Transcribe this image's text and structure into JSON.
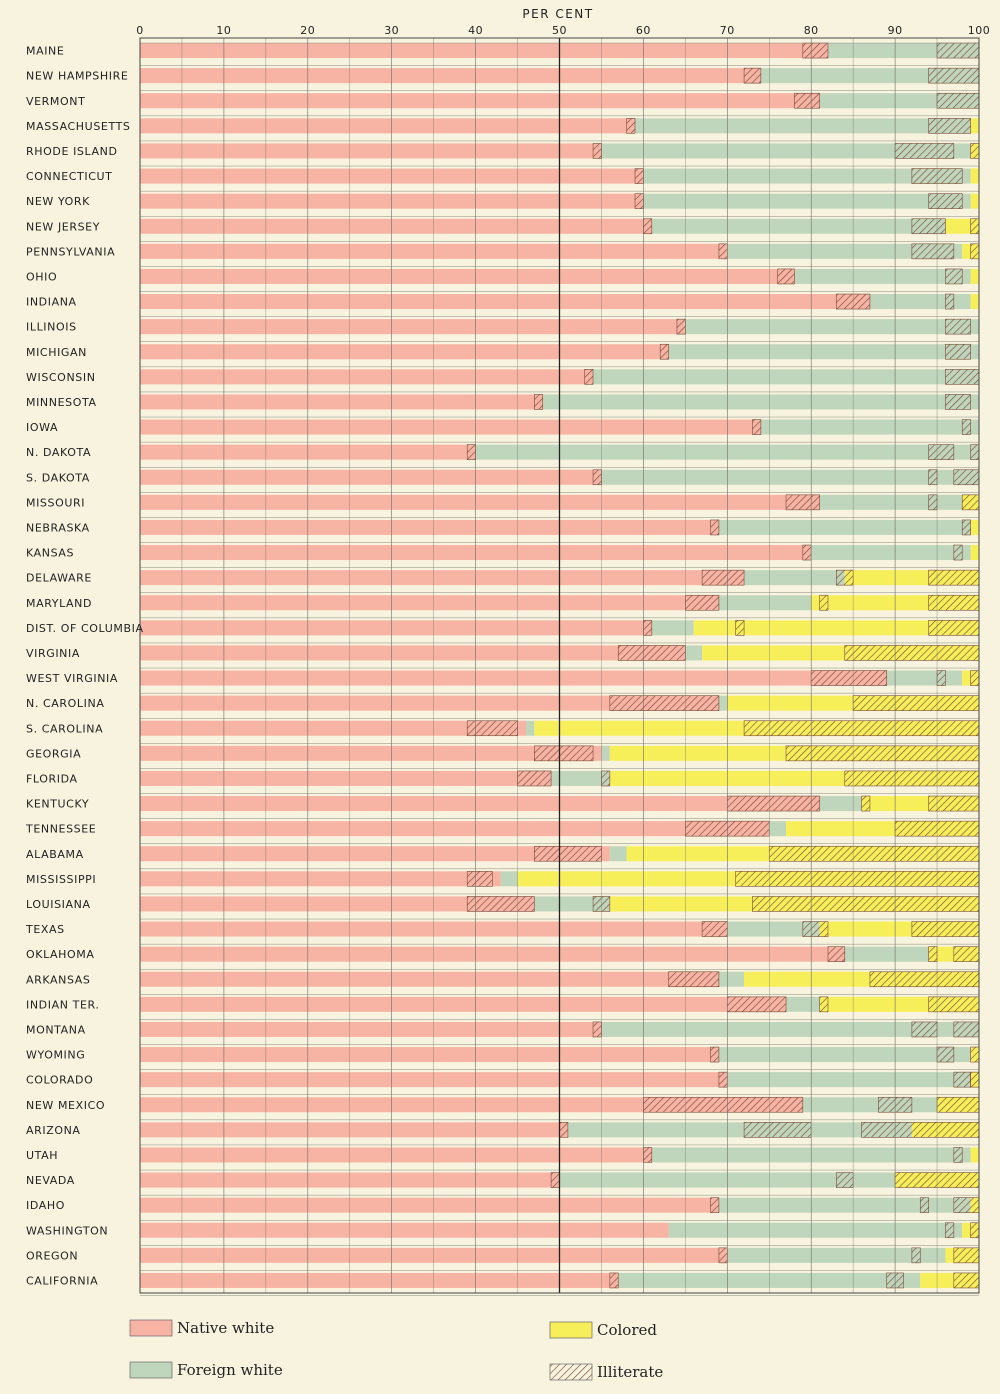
{
  "chart_data": {
    "type": "bar",
    "orientation": "horizontal",
    "stacked": true,
    "axis_title": "PER CENT",
    "ticks": [
      0,
      10,
      20,
      30,
      40,
      50,
      60,
      70,
      80,
      90,
      100
    ],
    "xlim": [
      0,
      100
    ],
    "grid": true,
    "legend_position": "bottom",
    "colors": {
      "native_white": "#f7b3a3",
      "foreign_white": "#bfd6bd",
      "colored": "#f7ef5a",
      "illiterate": "#c6c3b1",
      "hatch": "#7a4a3a",
      "background": "#f7f3de"
    },
    "legend": [
      {
        "key": "native_white",
        "label": "Native white"
      },
      {
        "key": "colored",
        "label": "Colored"
      },
      {
        "key": "foreign_white",
        "label": "Foreign white"
      },
      {
        "key": "illiterate",
        "label": "Illiterate"
      }
    ],
    "segment_order": [
      "native_white",
      "foreign_white",
      "colored"
    ],
    "categories": [
      "MAINE",
      "NEW HAMPSHIRE",
      "VERMONT",
      "MASSACHUSETTS",
      "RHODE ISLAND",
      "CONNECTICUT",
      "NEW YORK",
      "NEW JERSEY",
      "PENNSYLVANIA",
      "OHIO",
      "INDIANA",
      "ILLINOIS",
      "MICHIGAN",
      "WISCONSIN",
      "MINNESOTA",
      "IOWA",
      "N. DAKOTA",
      "S. DAKOTA",
      "MISSOURI",
      "NEBRASKA",
      "KANSAS",
      "DELAWARE",
      "MARYLAND",
      "DIST. OF COLUMBIA",
      "VIRGINIA",
      "WEST VIRGINIA",
      "N. CAROLINA",
      "S. CAROLINA",
      "GEORGIA",
      "FLORIDA",
      "KENTUCKY",
      "TENNESSEE",
      "ALABAMA",
      "MISSISSIPPI",
      "LOUISIANA",
      "TEXAS",
      "OKLAHOMA",
      "ARKANSAS",
      "INDIAN TER.",
      "MONTANA",
      "WYOMING",
      "COLORADO",
      "NEW MEXICO",
      "ARIZONA",
      "UTAH",
      "NEVADA",
      "IDAHO",
      "WASHINGTON",
      "OREGON",
      "CALIFORNIA"
    ],
    "series": [
      {
        "name": "Native white",
        "key": "native_white",
        "values": [
          82,
          74,
          81,
          59,
          55,
          60,
          60,
          61,
          70,
          78,
          87,
          65,
          63,
          54,
          48,
          74,
          40,
          55,
          81,
          69,
          80,
          72,
          69,
          61,
          65,
          89,
          69,
          46,
          55,
          49,
          81,
          75,
          56,
          43,
          47,
          70,
          84,
          69,
          77,
          55,
          69,
          70,
          79,
          51,
          61,
          50,
          69,
          63,
          70,
          57
        ]
      },
      {
        "name": "Foreign white",
        "key": "foreign_white",
        "values": [
          18,
          26,
          19,
          40,
          44,
          39,
          39,
          35,
          28,
          21,
          12,
          35,
          37,
          46,
          52,
          26,
          60,
          45,
          17,
          30,
          19,
          12,
          11,
          5,
          2,
          9,
          1,
          1,
          1,
          7,
          5,
          2,
          2,
          2,
          9,
          11,
          10,
          3,
          4,
          45,
          30,
          29,
          16,
          41,
          38,
          40,
          30,
          35,
          26,
          36
        ]
      },
      {
        "name": "Colored",
        "key": "colored",
        "values": [
          0,
          0,
          0,
          1,
          1,
          1,
          1,
          4,
          2,
          1,
          1,
          0,
          0,
          0,
          0,
          0,
          0,
          0,
          2,
          1,
          1,
          16,
          20,
          34,
          33,
          2,
          30,
          53,
          44,
          44,
          14,
          23,
          42,
          55,
          44,
          19,
          6,
          28,
          19,
          0,
          1,
          1,
          5,
          8,
          1,
          10,
          1,
          2,
          4,
          7
        ]
      },
      {
        "name": "Illiterate",
        "key": "illiterate",
        "segments": [
          [
            [
              79,
              82
            ],
            [
              95,
              100
            ]
          ],
          [
            [
              72,
              74
            ],
            [
              94,
              100
            ]
          ],
          [
            [
              78,
              81
            ],
            [
              95,
              100
            ]
          ],
          [
            [
              58,
              59
            ],
            [
              94,
              99
            ]
          ],
          [
            [
              54,
              55
            ],
            [
              90,
              97
            ],
            [
              99,
              100
            ]
          ],
          [
            [
              59,
              60
            ],
            [
              92,
              98
            ]
          ],
          [
            [
              59,
              60
            ],
            [
              94,
              98
            ]
          ],
          [
            [
              60,
              61
            ],
            [
              92,
              96
            ],
            [
              99,
              100
            ]
          ],
          [
            [
              69,
              70
            ],
            [
              92,
              97
            ],
            [
              99,
              100
            ]
          ],
          [
            [
              76,
              78
            ],
            [
              96,
              98
            ]
          ],
          [
            [
              83,
              87
            ],
            [
              96,
              97
            ]
          ],
          [
            [
              64,
              65
            ],
            [
              96,
              99
            ]
          ],
          [
            [
              62,
              63
            ],
            [
              96,
              99
            ]
          ],
          [
            [
              53,
              54
            ],
            [
              96,
              100
            ]
          ],
          [
            [
              47,
              48
            ],
            [
              96,
              99
            ]
          ],
          [
            [
              73,
              74
            ],
            [
              98,
              99
            ]
          ],
          [
            [
              39,
              40
            ],
            [
              94,
              97
            ],
            [
              99,
              100
            ]
          ],
          [
            [
              54,
              55
            ],
            [
              94,
              95
            ],
            [
              97,
              100
            ]
          ],
          [
            [
              77,
              81
            ],
            [
              94,
              95
            ],
            [
              98,
              100
            ]
          ],
          [
            [
              68,
              69
            ],
            [
              98,
              99
            ]
          ],
          [
            [
              79,
              80
            ],
            [
              97,
              98
            ]
          ],
          [
            [
              67,
              72
            ],
            [
              83,
              85
            ],
            [
              94,
              100
            ]
          ],
          [
            [
              65,
              69
            ],
            [
              81,
              82
            ],
            [
              94,
              100
            ]
          ],
          [
            [
              60,
              61
            ],
            [
              71,
              72
            ],
            [
              94,
              100
            ]
          ],
          [
            [
              57,
              65
            ],
            [
              84,
              100
            ]
          ],
          [
            [
              80,
              89
            ],
            [
              95,
              96
            ],
            [
              99,
              100
            ]
          ],
          [
            [
              56,
              69
            ],
            [
              85,
              100
            ]
          ],
          [
            [
              39,
              45
            ],
            [
              72,
              100
            ]
          ],
          [
            [
              47,
              54
            ],
            [
              77,
              100
            ]
          ],
          [
            [
              45,
              49
            ],
            [
              55,
              56
            ],
            [
              84,
              100
            ]
          ],
          [
            [
              70,
              81
            ],
            [
              86,
              87
            ],
            [
              94,
              100
            ]
          ],
          [
            [
              65,
              75
            ],
            [
              90,
              100
            ]
          ],
          [
            [
              47,
              55
            ],
            [
              75,
              100
            ]
          ],
          [
            [
              39,
              42
            ],
            [
              71,
              100
            ]
          ],
          [
            [
              39,
              47
            ],
            [
              54,
              56
            ],
            [
              73,
              100
            ]
          ],
          [
            [
              67,
              70
            ],
            [
              79,
              82
            ],
            [
              92,
              100
            ]
          ],
          [
            [
              82,
              84
            ],
            [
              94,
              95
            ],
            [
              97,
              100
            ]
          ],
          [
            [
              63,
              69
            ],
            [
              87,
              100
            ]
          ],
          [
            [
              70,
              77
            ],
            [
              81,
              82
            ],
            [
              94,
              100
            ]
          ],
          [
            [
              54,
              55
            ],
            [
              92,
              95
            ],
            [
              97,
              100
            ]
          ],
          [
            [
              68,
              69
            ],
            [
              95,
              97
            ],
            [
              99,
              100
            ]
          ],
          [
            [
              69,
              70
            ],
            [
              97,
              99
            ],
            [
              99,
              100
            ]
          ],
          [
            [
              60,
              79
            ],
            [
              88,
              92
            ],
            [
              95,
              100
            ]
          ],
          [
            [
              50,
              51
            ],
            [
              72,
              80
            ],
            [
              86,
              100
            ]
          ],
          [
            [
              60,
              61
            ],
            [
              97,
              98
            ]
          ],
          [
            [
              49,
              50
            ],
            [
              83,
              85
            ],
            [
              90,
              100
            ]
          ],
          [
            [
              68,
              69
            ],
            [
              93,
              94
            ],
            [
              97,
              100
            ]
          ],
          [
            [
              63,
              63
            ],
            [
              96,
              97
            ],
            [
              99,
              100
            ]
          ],
          [
            [
              69,
              70
            ],
            [
              92,
              93
            ],
            [
              97,
              100
            ]
          ],
          [
            [
              56,
              57
            ],
            [
              89,
              91
            ],
            [
              97,
              100
            ]
          ]
        ]
      }
    ]
  }
}
